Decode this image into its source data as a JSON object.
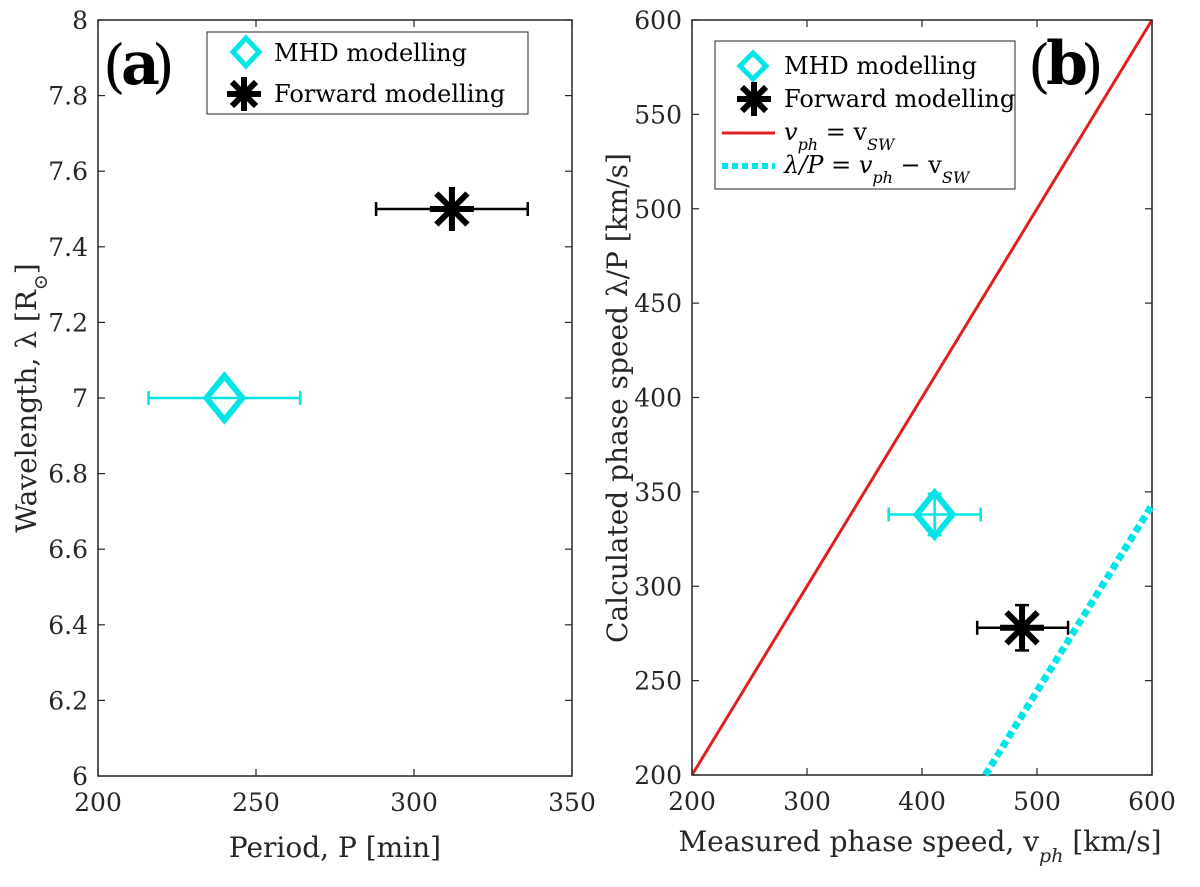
{
  "chart_data": [
    {
      "panel_label": "a",
      "type": "scatter",
      "xlabel": "Period, P [min]",
      "ylabel": "Wavelength, λ [R",
      "ylabel_sub": "⊙",
      "ylabel_close": "]",
      "xlim": [
        200,
        350
      ],
      "ylim": [
        6,
        8
      ],
      "x_ticks": [
        "200",
        "250",
        "300",
        "350"
      ],
      "y_ticks": [
        "6",
        "6.2",
        "6.4",
        "6.6",
        "6.8",
        "7",
        "7.2",
        "7.4",
        "7.6",
        "7.8",
        "8"
      ],
      "legend_position": "top-center",
      "series": [
        {
          "name": "MHD modelling",
          "marker": "diamond",
          "color": "#00e6e6",
          "x": 240,
          "y": 7.0,
          "xerr": [
            216,
            264
          ]
        },
        {
          "name": "Forward modelling",
          "marker": "star",
          "color": "#000000",
          "x": 312,
          "y": 7.5,
          "xerr": [
            288,
            336
          ]
        }
      ]
    },
    {
      "panel_label": "b",
      "type": "scatter",
      "xlabel": "Measured phase speed, v",
      "xlabel_sub": "ph",
      "xlabel_close": " [km/s]",
      "ylabel": "Calculated phase speed λ/P [km/s]",
      "xlim": [
        200,
        600
      ],
      "ylim": [
        200,
        600
      ],
      "x_ticks": [
        "200",
        "300",
        "400",
        "500",
        "600"
      ],
      "y_ticks": [
        "200",
        "250",
        "300",
        "350",
        "400",
        "450",
        "500",
        "550",
        "600"
      ],
      "legend_position": "top-left",
      "series": [
        {
          "name": "MHD modelling",
          "marker": "diamond",
          "color": "#00e6e6",
          "x": 411,
          "y": 338,
          "xerr": [
            371,
            451
          ],
          "yerr": [
            327,
            349
          ]
        },
        {
          "name": "Forward modelling",
          "marker": "star",
          "color": "#000000",
          "x": 487,
          "y": 278,
          "xerr": [
            448,
            527
          ],
          "yerr": [
            266,
            290
          ]
        }
      ],
      "lines": [
        {
          "name": "v_ph = v_SW",
          "style": "solid",
          "color": "#e02020",
          "x": [
            200,
            600
          ],
          "y": [
            200,
            600
          ]
        },
        {
          "name": "λ/P = v_ph − v_SW",
          "style": "dotted",
          "color": "#00e6e6",
          "x": [
            455,
            600
          ],
          "y": [
            200,
            343
          ]
        }
      ],
      "legend_labels": {
        "line1": {
          "a": "v",
          "a_sub": "ph",
          "eq": " = v",
          "b_sub": "SW"
        },
        "line2": {
          "a": "λ/P = v",
          "a_sub": "ph",
          "mid": " − v",
          "b_sub": "SW"
        }
      }
    }
  ]
}
